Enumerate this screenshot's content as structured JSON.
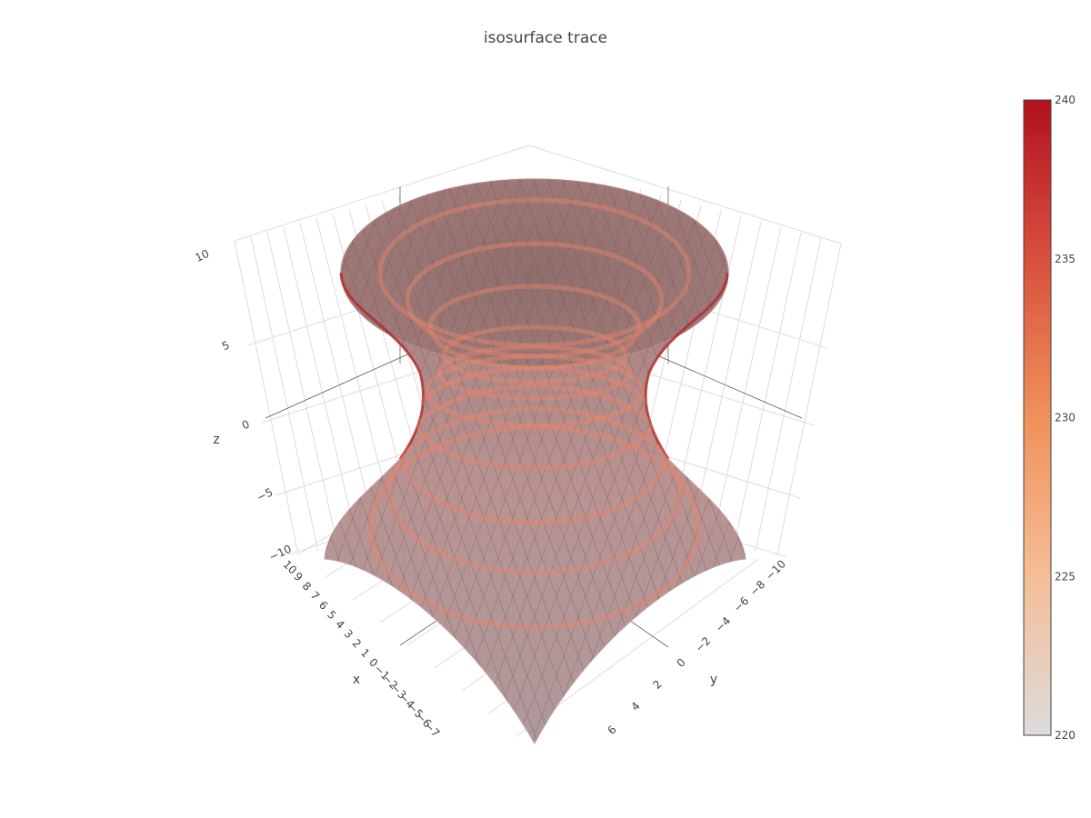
{
  "chart_data": {
    "type": "isosurface",
    "title": "isosurface trace",
    "axes": {
      "x": {
        "label": "x",
        "ticks": [
          "10",
          "9",
          "8",
          "7",
          "6",
          "5",
          "4",
          "3",
          "2",
          "1",
          "0",
          "-1",
          "-2",
          "-3",
          "-4",
          "-5",
          "-6",
          "-7"
        ]
      },
      "y": {
        "label": "y",
        "ticks": [
          "-10",
          "-8",
          "-6",
          "-4",
          "-2",
          "0",
          "2",
          "4",
          "6"
        ]
      },
      "z": {
        "label": "z",
        "ticks": [
          "10",
          "5",
          "0",
          "-5",
          "-10"
        ]
      }
    },
    "colorbar": {
      "min": 220,
      "max": 240,
      "ticks": [
        "240",
        "235",
        "230",
        "225",
        "220"
      ],
      "colorscale": [
        "#dcdcdc",
        "#f5bd96",
        "#f0915a",
        "#d9503e",
        "#b2111e"
      ]
    }
  }
}
